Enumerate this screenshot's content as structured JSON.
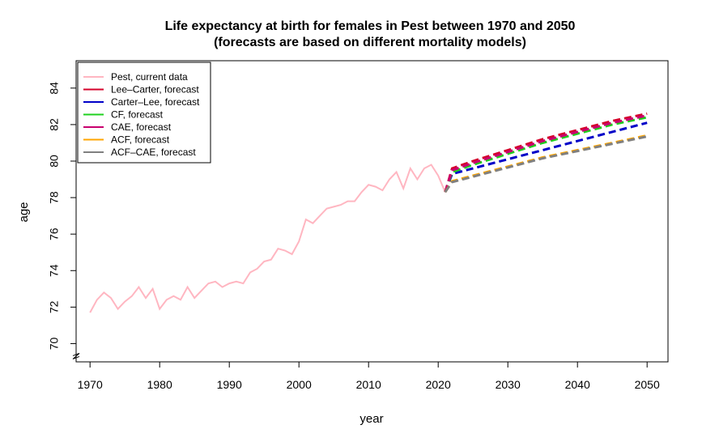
{
  "chart_data": {
    "type": "line",
    "title": "Life expectancy at birth for females in Pest between 1970 and 2050",
    "subtitle": "(forecasts are based on different mortality models)",
    "xlabel": "year",
    "ylabel": "age",
    "xlim": [
      1968,
      2053
    ],
    "ylim": [
      69.0,
      85.5
    ],
    "x_ticks": [
      1970,
      1980,
      1990,
      2000,
      2010,
      2020,
      2030,
      2040,
      2050
    ],
    "y_ticks": [
      70,
      72,
      74,
      76,
      78,
      80,
      82,
      84
    ],
    "axis_break": true,
    "grid": false,
    "legend_position": "top-left",
    "series": [
      {
        "name": "Pest, current data",
        "color": "#ffb6c1",
        "style": "solid",
        "x": [
          1970,
          1971,
          1972,
          1973,
          1974,
          1975,
          1976,
          1977,
          1978,
          1979,
          1980,
          1981,
          1982,
          1983,
          1984,
          1985,
          1986,
          1987,
          1988,
          1989,
          1990,
          1991,
          1992,
          1993,
          1994,
          1995,
          1996,
          1997,
          1998,
          1999,
          2000,
          2001,
          2002,
          2003,
          2004,
          2005,
          2006,
          2007,
          2008,
          2009,
          2010,
          2011,
          2012,
          2013,
          2014,
          2015,
          2016,
          2017,
          2018,
          2019,
          2020,
          2021
        ],
        "y": [
          71.7,
          72.4,
          72.8,
          72.5,
          71.9,
          72.3,
          72.6,
          73.1,
          72.5,
          73.0,
          71.9,
          72.4,
          72.6,
          72.4,
          73.1,
          72.5,
          72.9,
          73.3,
          73.4,
          73.1,
          73.3,
          73.4,
          73.3,
          73.9,
          74.1,
          74.5,
          74.6,
          75.2,
          75.1,
          74.9,
          75.6,
          76.8,
          76.6,
          77.0,
          77.4,
          77.5,
          77.6,
          77.8,
          77.8,
          78.3,
          78.7,
          78.6,
          78.4,
          79.0,
          79.4,
          78.5,
          79.6,
          79.0,
          79.6,
          79.8,
          79.2,
          78.3
        ]
      },
      {
        "name": "Lee–Carter, forecast",
        "color": "#d4002a",
        "style": "dashed",
        "x": [
          2021,
          2022,
          2025,
          2030,
          2035,
          2040,
          2045,
          2050
        ],
        "y": [
          78.3,
          79.6,
          80.0,
          80.6,
          81.2,
          81.7,
          82.2,
          82.6
        ]
      },
      {
        "name": "Carter–Lee, forecast",
        "color": "#0000c8",
        "style": "dashed",
        "x": [
          2021,
          2022,
          2025,
          2030,
          2035,
          2040,
          2045,
          2050
        ],
        "y": [
          78.3,
          79.3,
          79.6,
          80.1,
          80.6,
          81.1,
          81.6,
          82.1
        ]
      },
      {
        "name": "CF, forecast",
        "color": "#1fd01f",
        "style": "dashed",
        "x": [
          2021,
          2022,
          2025,
          2030,
          2035,
          2040,
          2045,
          2050
        ],
        "y": [
          78.3,
          79.4,
          79.8,
          80.4,
          81.0,
          81.5,
          82.0,
          82.4
        ]
      },
      {
        "name": "CAE, forecast",
        "color": "#c8006e",
        "style": "dashed",
        "x": [
          2021,
          2022,
          2025,
          2030,
          2035,
          2040,
          2045,
          2050
        ],
        "y": [
          78.3,
          79.5,
          79.9,
          80.5,
          81.1,
          81.6,
          82.1,
          82.5
        ]
      },
      {
        "name": "ACF, forecast",
        "color": "#ffa500",
        "style": "dashed",
        "x": [
          2021,
          2022,
          2025,
          2030,
          2035,
          2040,
          2045,
          2050
        ],
        "y": [
          78.3,
          78.9,
          79.2,
          79.7,
          80.2,
          80.6,
          81.0,
          81.4
        ]
      },
      {
        "name": "ACF–CAE, forecast",
        "color": "#808080",
        "style": "dashed",
        "x": [
          2021,
          2022,
          2025,
          2030,
          2035,
          2040,
          2045,
          2050
        ],
        "y": [
          78.3,
          78.85,
          79.15,
          79.65,
          80.15,
          80.55,
          80.95,
          81.35
        ]
      }
    ]
  }
}
